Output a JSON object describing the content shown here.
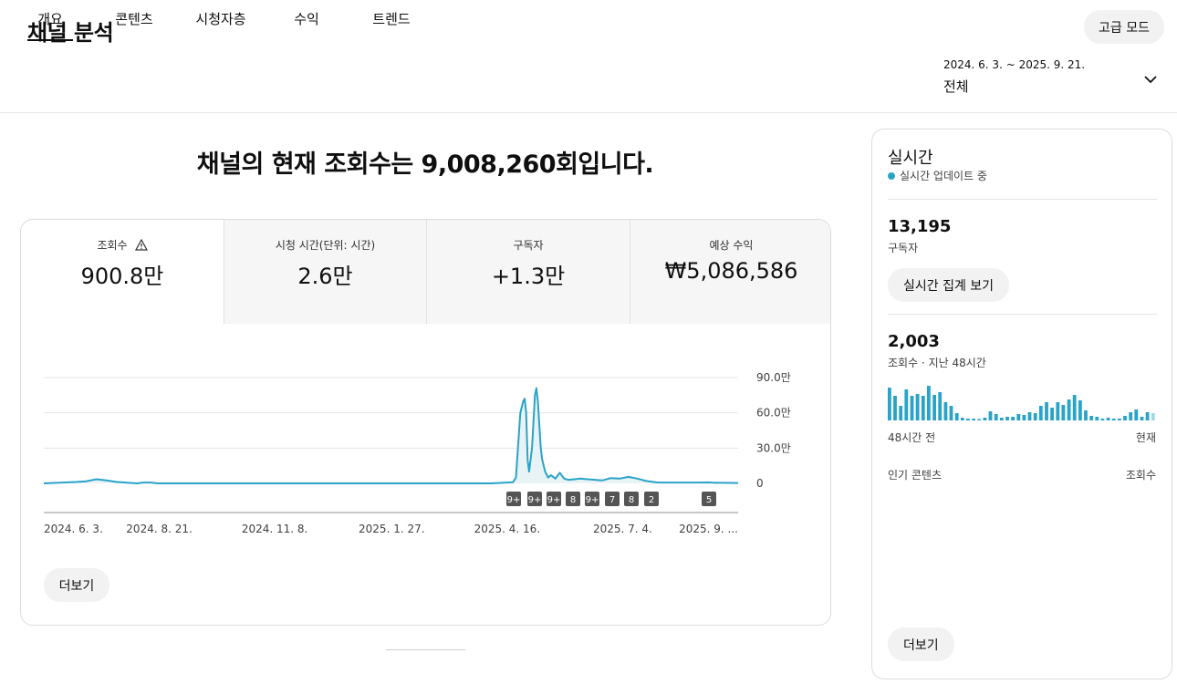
{
  "header": {
    "title": "채널 분석",
    "advanced_mode": "고급 모드",
    "tabs": [
      {
        "label": "개요",
        "active": true
      },
      {
        "label": "콘텐츠",
        "active": false
      },
      {
        "label": "시청자층",
        "active": false
      },
      {
        "label": "수익",
        "active": false
      },
      {
        "label": "트렌드",
        "active": false
      }
    ],
    "date_range": "2024. 6. 3. ~ 2025. 9. 21.",
    "date_range_label": "전체"
  },
  "main": {
    "headline": "채널의 현재 조회수는 9,008,260회입니다.",
    "metrics": [
      {
        "label": "조회수",
        "value": "900.8만",
        "warning": true,
        "active": true
      },
      {
        "label": "시청 시간(단위: 시간)",
        "value": "2.6만",
        "warning": false,
        "active": false
      },
      {
        "label": "구독자",
        "value": "+1.3만",
        "warning": false,
        "active": false
      },
      {
        "label": "예상 수익",
        "value": "₩5,086,586",
        "warning": false,
        "active": false
      }
    ],
    "more_button": "더보기"
  },
  "chart_data": {
    "type": "line",
    "ytick_labels": [
      "90.0만",
      "60.0만",
      "30.0만",
      "0"
    ],
    "yticks": [
      900000,
      600000,
      300000,
      0
    ],
    "ylim": [
      0,
      900000
    ],
    "xtick_labels": [
      "2024. 6. 3.",
      "2024. 8. 21.",
      "2024. 11. 8.",
      "2025. 1. 27.",
      "2025. 4. 16.",
      "2025. 7. 4.",
      "2025. 9. ..."
    ],
    "xtick_dates": [
      "2024-06-03",
      "2024-08-21",
      "2024-11-08",
      "2025-01-27",
      "2025-04-16",
      "2025-07-04",
      "2025-09-21"
    ],
    "series": [
      {
        "x": [
          "2024-06-03",
          "2024-06-25",
          "2024-07-02",
          "2024-07-09",
          "2024-07-16",
          "2024-07-23",
          "2024-08-06",
          "2024-08-10",
          "2024-08-15",
          "2024-08-20",
          "2025-04-05",
          "2025-04-20",
          "2025-04-22",
          "2025-04-24",
          "2025-04-25",
          "2025-04-26",
          "2025-04-27",
          "2025-04-28",
          "2025-04-29",
          "2025-04-30",
          "2025-05-01",
          "2025-05-03",
          "2025-05-05",
          "2025-05-06",
          "2025-05-07",
          "2025-05-08",
          "2025-05-09",
          "2025-05-10",
          "2025-05-12",
          "2025-05-14",
          "2025-05-16",
          "2025-05-19",
          "2025-05-22",
          "2025-05-25",
          "2025-05-28",
          "2025-06-01",
          "2025-06-05",
          "2025-06-10",
          "2025-06-15",
          "2025-06-20",
          "2025-06-26",
          "2025-07-02",
          "2025-07-08",
          "2025-07-14",
          "2025-07-20",
          "2025-07-28",
          "2025-08-10",
          "2025-08-25",
          "2025-09-01",
          "2025-09-05",
          "2025-09-10",
          "2025-09-21"
        ],
        "y": [
          0,
          12000,
          18000,
          35000,
          25000,
          12000,
          0,
          7000,
          7000,
          0,
          0,
          10000,
          50000,
          420000,
          600000,
          650000,
          700000,
          720000,
          600000,
          200000,
          100000,
          300000,
          750000,
          810000,
          700000,
          500000,
          300000,
          200000,
          100000,
          50000,
          70000,
          40000,
          90000,
          40000,
          30000,
          35000,
          40000,
          35000,
          30000,
          25000,
          45000,
          40000,
          55000,
          40000,
          20000,
          7000,
          7000,
          7000,
          8000,
          5000,
          5000,
          3000
        ]
      }
    ],
    "markers": [
      "9+",
      "9+",
      "9+",
      "8",
      "9+",
      "7",
      "8",
      "2",
      "5"
    ],
    "grid": true
  },
  "realtime": {
    "title": "실시간",
    "status": "실시간 업데이트 중",
    "subscribers_value": "13,195",
    "subscribers_label": "구독자",
    "realtime_button": "실시간 집계 보기",
    "views_value": "2,003",
    "views_label": "조회수 · 지난 48시간",
    "axis_left": "48시간 전",
    "axis_right": "현재",
    "top_content_label": "인기 콘텐츠",
    "top_content_metric": "조회수",
    "more_button": "더보기",
    "hourly_views": [
      36,
      27,
      16,
      34,
      27,
      29,
      27,
      38,
      28,
      31,
      20,
      16,
      8,
      3,
      2,
      2,
      1,
      3,
      10,
      7,
      3,
      4,
      4,
      7,
      6,
      9,
      8,
      16,
      20,
      14,
      20,
      17,
      23,
      28,
      22,
      11,
      5,
      4,
      2,
      3,
      2,
      2,
      5,
      9,
      12,
      4,
      9,
      8
    ],
    "bar_color": "#2aa3c9",
    "bar_color_current": "#9fd8e6"
  }
}
